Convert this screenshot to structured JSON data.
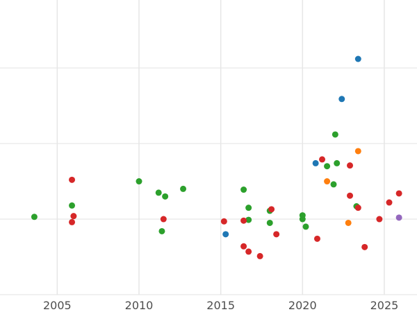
{
  "chart_data": {
    "type": "scatter",
    "title": "",
    "xlabel": "",
    "ylabel": "",
    "xlim": [
      2001.5,
      2027.0
    ],
    "ylim": [
      -1.0,
      2.9
    ],
    "x_ticks": [
      2005,
      2010,
      2015,
      2020,
      2025
    ],
    "x_tick_labels": [
      "2005",
      "2010",
      "2015",
      "2020",
      "2025"
    ],
    "y_gridlines": [
      -1,
      0,
      1,
      2,
      3
    ],
    "grid": true,
    "legend": "none",
    "colors": {
      "blue": "#1f77b4",
      "orange": "#ff7f0e",
      "green": "#2ca02c",
      "red": "#d62728",
      "purple": "#9467bd"
    },
    "series": [
      {
        "color": "blue",
        "points": [
          [
            2015.3,
            -0.2
          ],
          [
            2020.8,
            0.74
          ],
          [
            2022.4,
            1.59
          ],
          [
            2023.4,
            2.12
          ]
        ]
      },
      {
        "color": "orange",
        "points": [
          [
            2021.5,
            0.5
          ],
          [
            2022.8,
            -0.05
          ],
          [
            2023.4,
            0.9
          ]
        ]
      },
      {
        "color": "green",
        "points": [
          [
            2003.6,
            0.03
          ],
          [
            2005.9,
            0.18
          ],
          [
            2010.0,
            0.5
          ],
          [
            2011.2,
            0.35
          ],
          [
            2011.6,
            0.3
          ],
          [
            2012.7,
            0.4
          ],
          [
            2011.4,
            -0.16
          ],
          [
            2016.4,
            0.39
          ],
          [
            2016.7,
            0.15
          ],
          [
            2016.7,
            -0.01
          ],
          [
            2018.0,
            0.11
          ],
          [
            2018.0,
            -0.05
          ],
          [
            2020.0,
            0.05
          ],
          [
            2020.0,
            0.0
          ],
          [
            2020.2,
            -0.1
          ],
          [
            2021.5,
            0.7
          ],
          [
            2022.0,
            1.12
          ],
          [
            2022.1,
            0.74
          ],
          [
            2021.9,
            0.46
          ],
          [
            2023.3,
            0.17
          ]
        ]
      },
      {
        "color": "red",
        "points": [
          [
            2005.9,
            0.52
          ],
          [
            2006.0,
            0.04
          ],
          [
            2005.9,
            -0.04
          ],
          [
            2011.5,
            0.0
          ],
          [
            2015.2,
            -0.03
          ],
          [
            2016.4,
            -0.02
          ],
          [
            2016.4,
            -0.36
          ],
          [
            2016.7,
            -0.43
          ],
          [
            2017.4,
            -0.49
          ],
          [
            2018.1,
            0.13
          ],
          [
            2018.4,
            -0.2
          ],
          [
            2020.9,
            -0.26
          ],
          [
            2021.2,
            0.79
          ],
          [
            2022.9,
            0.71
          ],
          [
            2022.9,
            0.31
          ],
          [
            2023.4,
            0.15
          ],
          [
            2023.8,
            -0.37
          ],
          [
            2024.7,
            0.0
          ],
          [
            2025.3,
            0.22
          ],
          [
            2025.9,
            0.34
          ]
        ]
      },
      {
        "color": "purple",
        "points": [
          [
            2025.9,
            0.02
          ]
        ]
      }
    ]
  }
}
